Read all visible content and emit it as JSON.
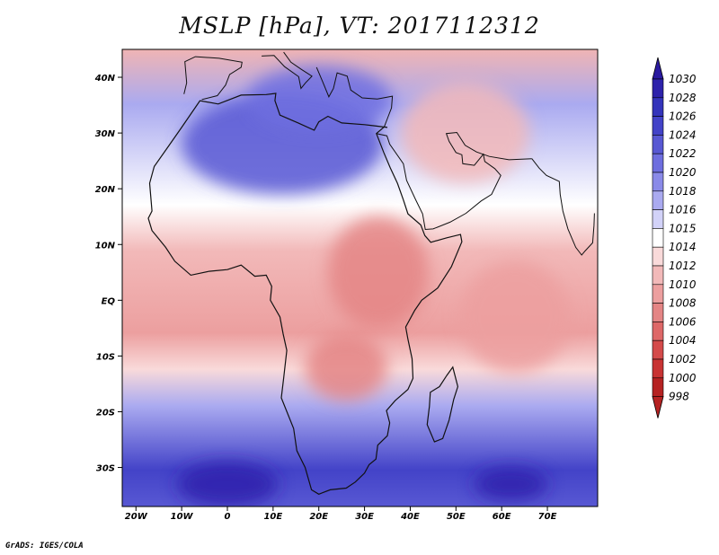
{
  "title": "MSLP [hPa], VT: 2017112312",
  "credit": "GrADS: IGES/COLA",
  "lat_axis": {
    "range": [
      -37,
      45
    ],
    "ticks": [
      {
        "value": 40,
        "label": "40N"
      },
      {
        "value": 30,
        "label": "30N"
      },
      {
        "value": 20,
        "label": "20N"
      },
      {
        "value": 10,
        "label": "10N"
      },
      {
        "value": 0,
        "label": "EQ"
      },
      {
        "value": -10,
        "label": "10S"
      },
      {
        "value": -20,
        "label": "20S"
      },
      {
        "value": -30,
        "label": "30S"
      }
    ]
  },
  "lon_axis": {
    "range": [
      -23,
      81
    ],
    "ticks": [
      {
        "value": -20,
        "label": "20W"
      },
      {
        "value": -10,
        "label": "10W"
      },
      {
        "value": 0,
        "label": "0"
      },
      {
        "value": 10,
        "label": "10E"
      },
      {
        "value": 20,
        "label": "20E"
      },
      {
        "value": 30,
        "label": "30E"
      },
      {
        "value": 40,
        "label": "40E"
      },
      {
        "value": 50,
        "label": "50E"
      },
      {
        "value": 60,
        "label": "60E"
      },
      {
        "value": 70,
        "label": "70E"
      }
    ]
  },
  "colorbar": {
    "levels": [
      {
        "label": "1030",
        "color": "#2a1aa0"
      },
      {
        "label": "1028",
        "color": "#2d22ab"
      },
      {
        "label": "1026",
        "color": "#3434bb"
      },
      {
        "label": "1024",
        "color": "#4343c8"
      },
      {
        "label": "1022",
        "color": "#5858d3"
      },
      {
        "label": "1020",
        "color": "#6e6edf"
      },
      {
        "label": "1018",
        "color": "#8a8ae8"
      },
      {
        "label": "1016",
        "color": "#aaaaf0"
      },
      {
        "label": "1015",
        "color": "#d2d2f8"
      },
      {
        "label": "1014",
        "color": "#ffffff"
      },
      {
        "label": "1012",
        "color": "#f9dada"
      },
      {
        "label": "1010",
        "color": "#f2b9b9"
      },
      {
        "label": "1008",
        "color": "#ec9f9f"
      },
      {
        "label": "1006",
        "color": "#e48585"
      },
      {
        "label": "1004",
        "color": "#de6868"
      },
      {
        "label": "1002",
        "color": "#d44a4a"
      },
      {
        "label": "1000",
        "color": "#c83333"
      },
      {
        "label": "998",
        "color": "#b52222"
      }
    ],
    "top_arrow_color": "#2a1aa0",
    "bottom_arrow_color": "#b52222"
  },
  "field_regions": [
    {
      "name": "north-africa-high",
      "value": 1022,
      "lon": 12,
      "lat": 28,
      "rx": 22,
      "ry": 9
    },
    {
      "name": "mediterranean-high",
      "value": 1020,
      "lon": 20,
      "lat": 36,
      "rx": 16,
      "ry": 6
    },
    {
      "name": "south-atlantic-high",
      "value": 1028,
      "lon": 0,
      "lat": -33,
      "rx": 11,
      "ry": 4
    },
    {
      "name": "south-indian-high",
      "value": 1028,
      "lon": 62,
      "lat": -33,
      "rx": 8,
      "ry": 3
    },
    {
      "name": "east-africa-low",
      "value": 1006,
      "lon": 33,
      "lat": 5,
      "rx": 11,
      "ry": 10
    },
    {
      "name": "central-africa-low",
      "value": 1006,
      "lon": 26,
      "lat": -12,
      "rx": 9,
      "ry": 6
    },
    {
      "name": "arabia-low",
      "value": 1010,
      "lon": 52,
      "lat": 30,
      "rx": 14,
      "ry": 9
    },
    {
      "name": "indian-ocean-low",
      "value": 1008,
      "lon": 63,
      "lat": -3,
      "rx": 12,
      "ry": 10
    }
  ]
}
